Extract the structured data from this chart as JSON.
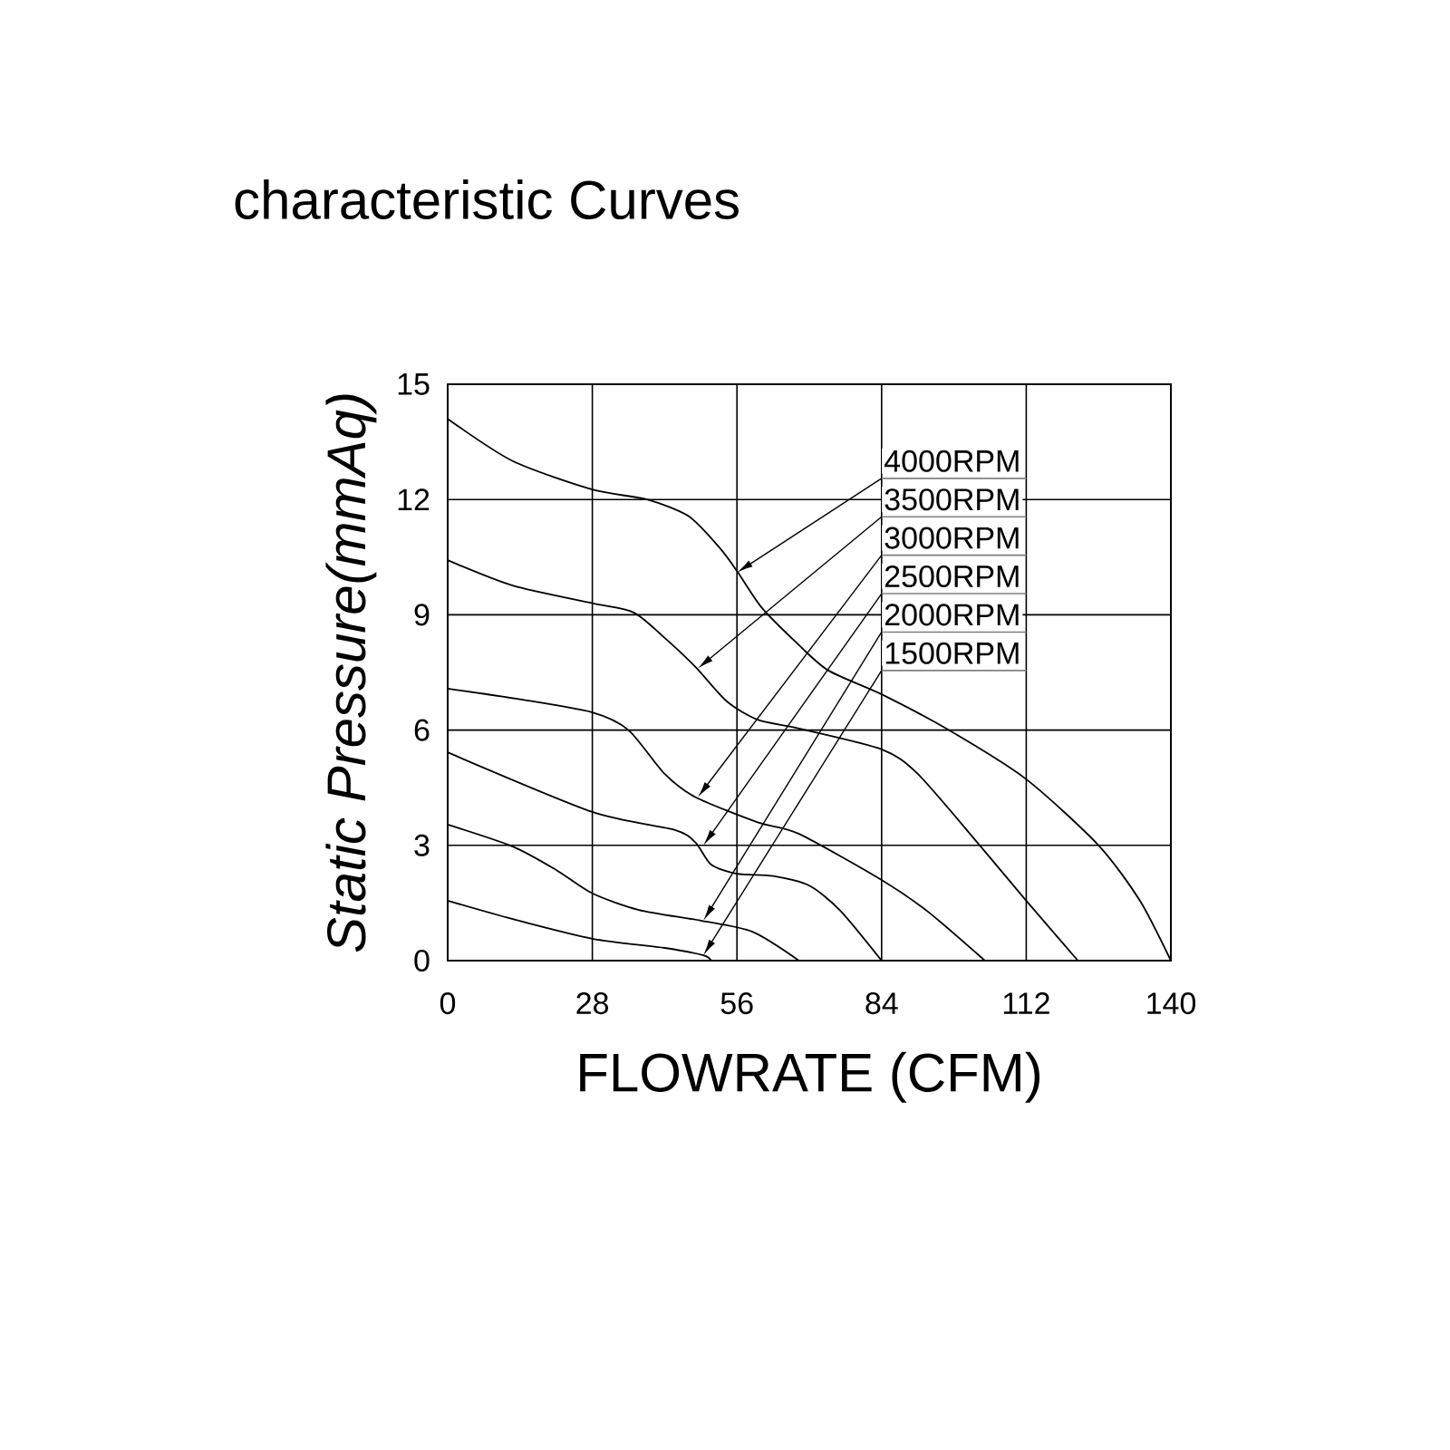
{
  "chart_data": {
    "type": "line",
    "title": "characteristic Curves",
    "xlabel": "FLOWRATE (CFM)",
    "ylabel": "Static  Pressure(mmAq)",
    "xlim": [
      0,
      140
    ],
    "xticks": [
      0,
      28,
      56,
      84,
      112,
      140
    ],
    "ylim": [
      0,
      15
    ],
    "yticks": [
      0,
      3,
      6,
      9,
      12,
      15
    ],
    "grid": true,
    "marker": "none",
    "line_style": "solid",
    "series": [
      {
        "color": "#000000",
        "x": [
          0,
          12.6,
          28,
          38.6,
          46.7,
          52.6,
          56,
          60.7,
          67.7,
          73.7,
          84,
          97,
          112,
          126,
          134,
          140
        ],
        "values": [
          14.1,
          13.0,
          12.26,
          12.0,
          11.56,
          10.75,
          10.14,
          9.2,
          8.25,
          7.55,
          6.93,
          6.0,
          4.72,
          3.0,
          1.56,
          0
        ]
      },
      {
        "color": "#000000",
        "x": [
          0,
          12.6,
          28,
          36,
          42,
          48,
          54,
          60,
          68,
          84,
          91,
          103,
          112,
          122
        ],
        "values": [
          10.42,
          9.76,
          9.3,
          9.06,
          8.4,
          7.64,
          6.75,
          6.27,
          6.04,
          5.5,
          4.86,
          3.0,
          1.56,
          0
        ]
      },
      {
        "color": "#000000",
        "x": [
          0,
          14,
          28,
          35,
          42,
          48,
          60,
          68,
          84,
          93,
          104
        ],
        "values": [
          7.08,
          6.8,
          6.46,
          6.0,
          4.86,
          4.25,
          3.6,
          3.3,
          2.1,
          1.27,
          0
        ]
      },
      {
        "color": "#000000",
        "x": [
          0,
          28,
          44,
          48,
          51,
          56,
          63,
          70,
          76,
          84
        ],
        "values": [
          5.42,
          3.87,
          3.4,
          3.07,
          2.5,
          2.26,
          2.2,
          1.95,
          1.3,
          0
        ]
      },
      {
        "color": "#000000",
        "x": [
          0,
          12.6,
          21,
          28,
          37,
          49,
          59,
          68
        ],
        "values": [
          3.54,
          2.97,
          2.36,
          1.75,
          1.32,
          1.04,
          0.75,
          0
        ]
      },
      {
        "color": "#000000",
        "x": [
          0,
          12.6,
          28,
          42,
          49.5,
          51
        ],
        "values": [
          1.56,
          1.08,
          0.57,
          0.33,
          0.14,
          0
        ]
      }
    ],
    "annotations": [
      {
        "text": "4000RPM",
        "x": 56,
        "y": 10.1
      },
      {
        "text": "3500RPM",
        "x": 48.4,
        "y": 7.6
      },
      {
        "text": "3000RPM",
        "x": 48.4,
        "y": 4.25
      },
      {
        "text": "2500RPM",
        "x": 49.5,
        "y": 3.0
      },
      {
        "text": "2000RPM",
        "x": 49.5,
        "y": 1.04
      },
      {
        "text": "1500RPM",
        "x": 49.5,
        "y": 0.14
      }
    ]
  }
}
